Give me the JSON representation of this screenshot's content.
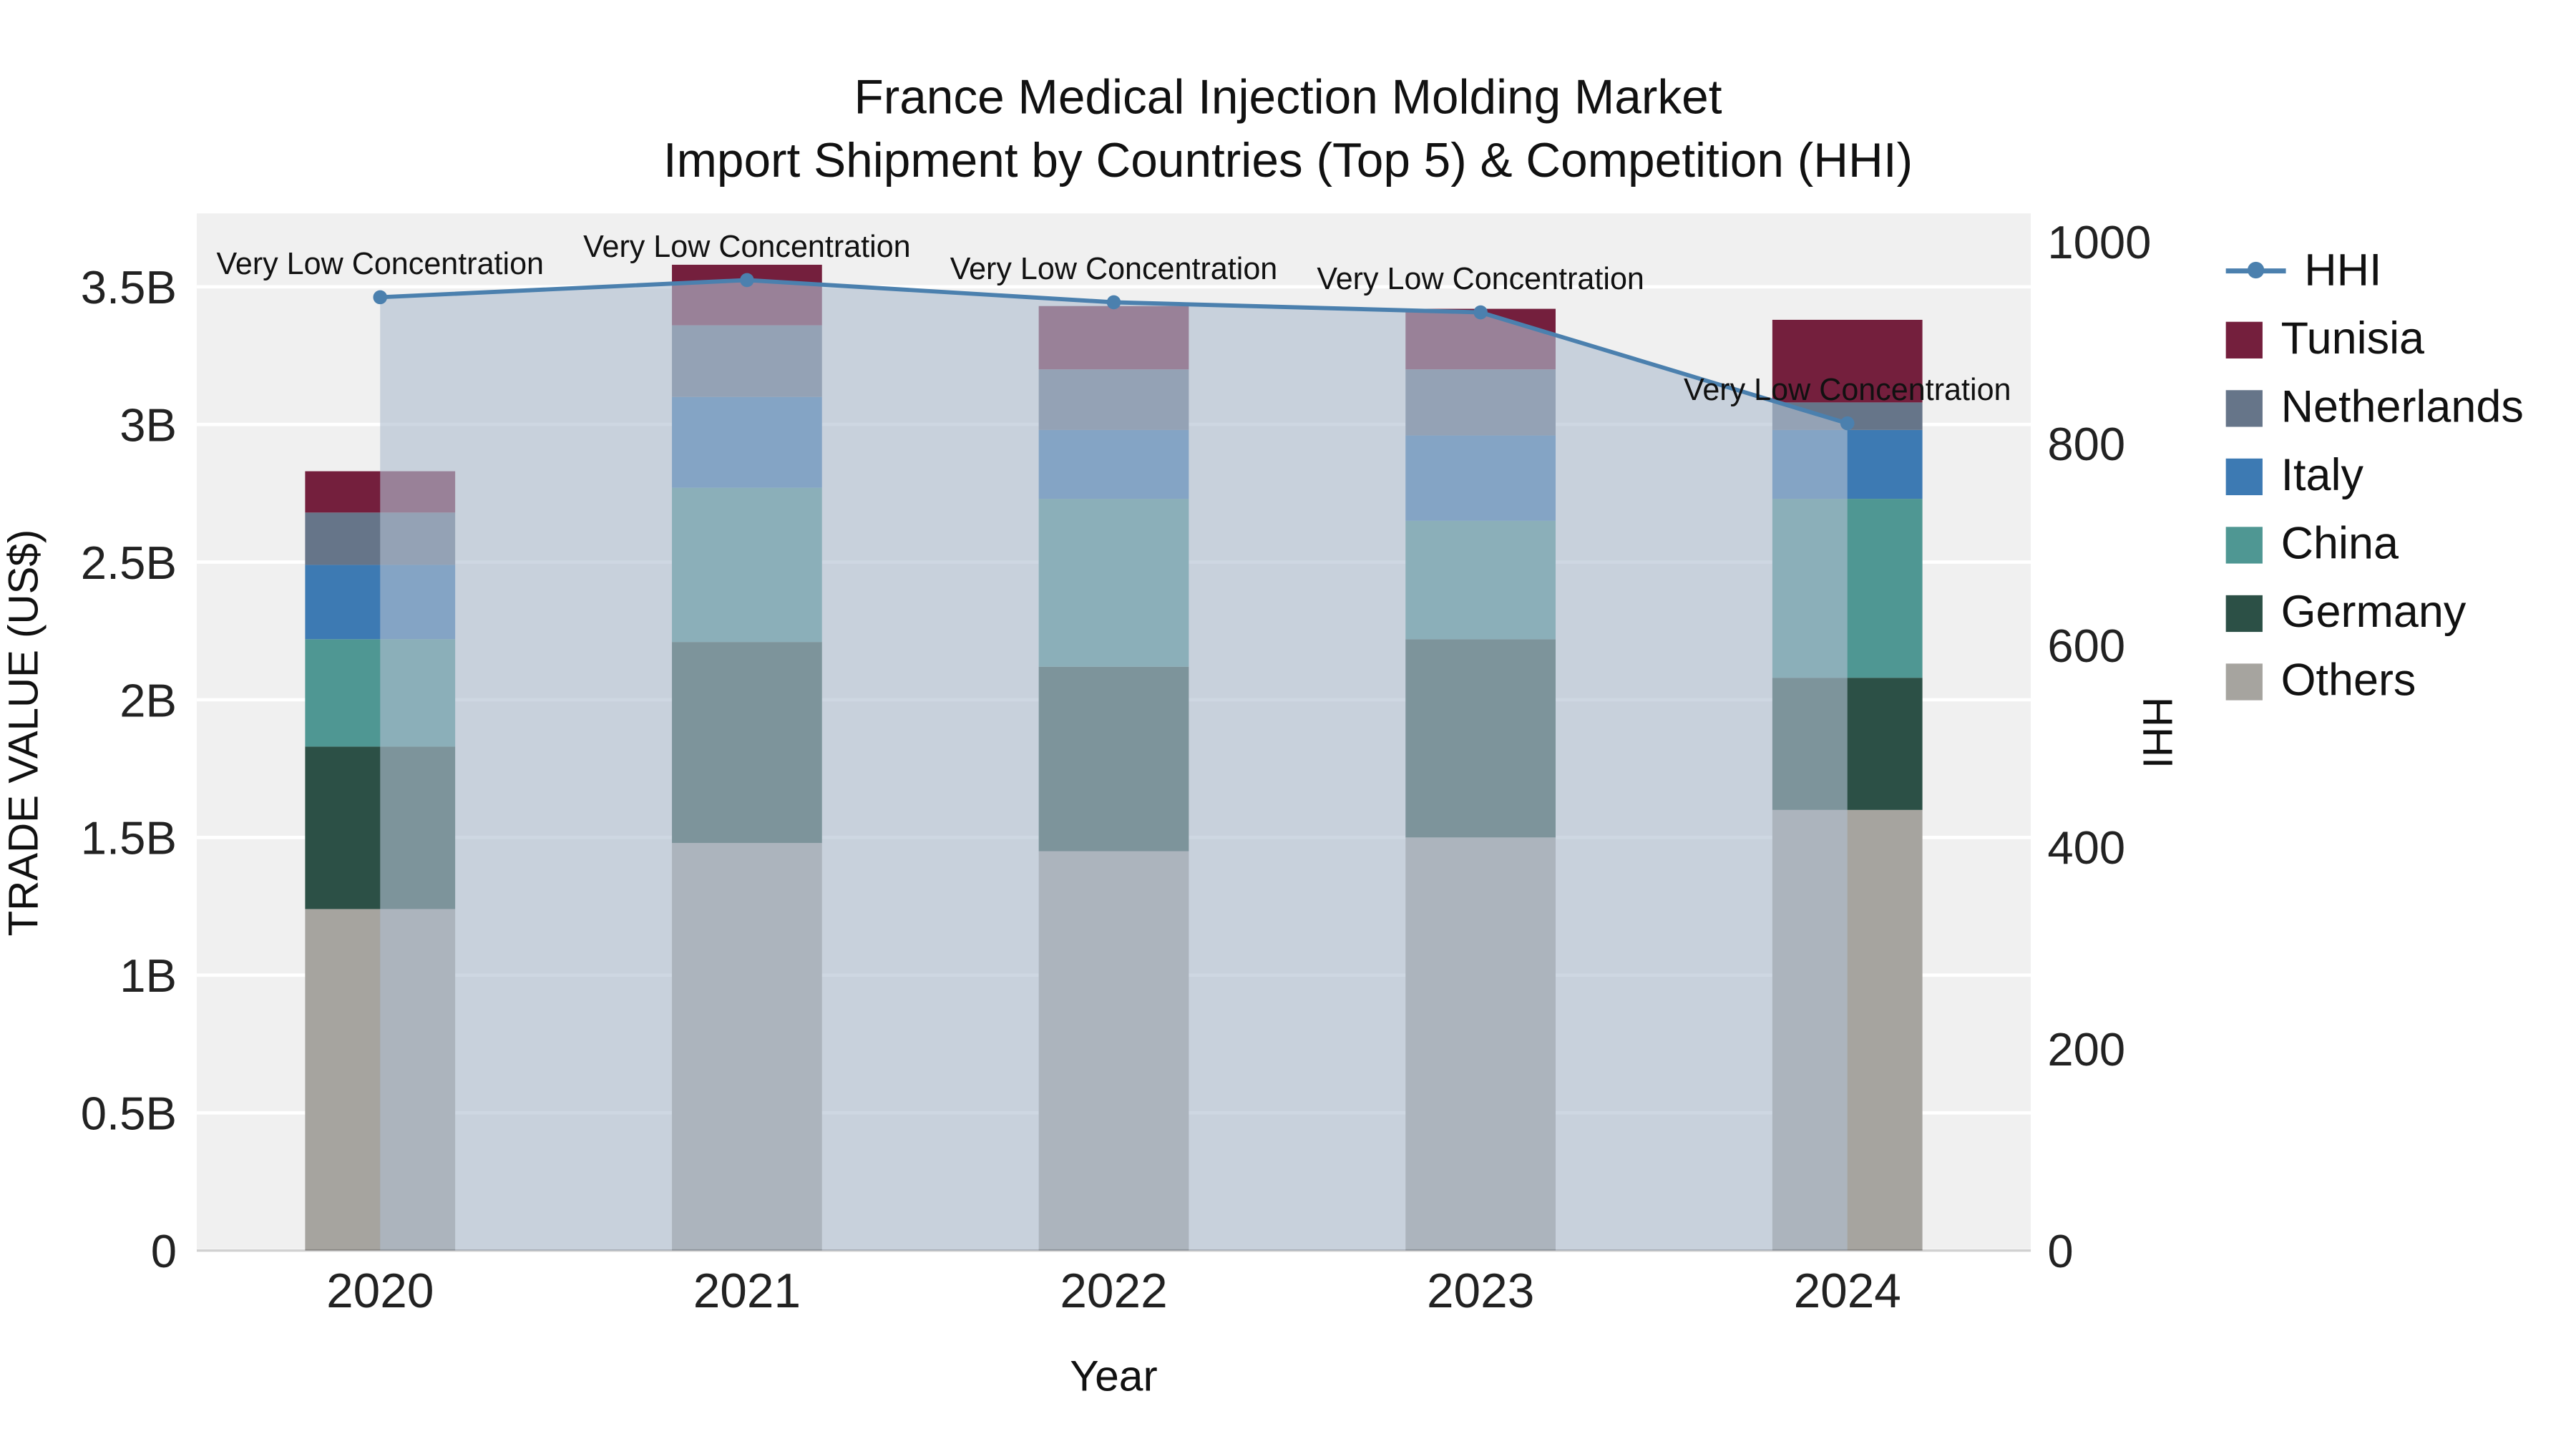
{
  "title": {
    "line1": "France Medical Injection Molding Market",
    "line2": "Import Shipment by Countries (Top 5) & Competition (HHI)"
  },
  "axes": {
    "x": {
      "label": "Year"
    },
    "y_left": {
      "label": "TRADE VALUE (US$)",
      "ticks": [
        {
          "label": "0",
          "value": 0
        },
        {
          "label": "0.5B",
          "value": 0.5
        },
        {
          "label": "1B",
          "value": 1
        },
        {
          "label": "1.5B",
          "value": 1.5
        },
        {
          "label": "2B",
          "value": 2
        },
        {
          "label": "2.5B",
          "value": 2.5
        },
        {
          "label": "3B",
          "value": 3
        },
        {
          "label": "3.5B",
          "value": 3.5
        }
      ]
    },
    "y_right": {
      "label": "HHI",
      "ticks": [
        {
          "label": "0",
          "value": 0
        },
        {
          "label": "200",
          "value": 200
        },
        {
          "label": "400",
          "value": 400
        },
        {
          "label": "600",
          "value": 600
        },
        {
          "label": "800",
          "value": 800
        },
        {
          "label": "1000",
          "value": 1000
        }
      ]
    }
  },
  "chart_data": {
    "type": "bar",
    "subtype": "stacked bars (left axis, billions US$) + HHI line with area fill (right axis)",
    "categories": [
      "2020",
      "2021",
      "2022",
      "2023",
      "2024"
    ],
    "bar_unit": "billion US$",
    "series": [
      {
        "name": "Others",
        "color": "#a6a49f",
        "values": [
          1.24,
          1.48,
          1.45,
          1.5,
          1.6
        ]
      },
      {
        "name": "Germany",
        "color": "#2c5046",
        "values": [
          0.59,
          0.73,
          0.67,
          0.72,
          0.48
        ]
      },
      {
        "name": "China",
        "color": "#4f9793",
        "values": [
          0.39,
          0.56,
          0.61,
          0.43,
          0.65
        ]
      },
      {
        "name": "Italy",
        "color": "#3d7ab3",
        "values": [
          0.27,
          0.33,
          0.25,
          0.31,
          0.25
        ]
      },
      {
        "name": "Netherlands",
        "color": "#667589",
        "values": [
          0.19,
          0.26,
          0.22,
          0.24,
          0.1
        ]
      },
      {
        "name": "Tunisia",
        "color": "#741f3d",
        "values": [
          0.15,
          0.22,
          0.23,
          0.22,
          0.3
        ]
      }
    ],
    "line_series": {
      "name": "HHI",
      "color": "#4b80ae",
      "axis": "right",
      "values": [
        945,
        962,
        940,
        930,
        820
      ],
      "area_fill": "rgba(176,191,208,0.62)"
    },
    "annotations": [
      {
        "text": "Very Low Concentration",
        "category": "2020"
      },
      {
        "text": "Very Low Concentration",
        "category": "2021"
      },
      {
        "text": "Very Low Concentration",
        "category": "2022"
      },
      {
        "text": "Very Low Concentration",
        "category": "2023"
      },
      {
        "text": "Very Low Concentration",
        "category": "2024"
      }
    ],
    "legend_order": [
      "HHI",
      "Tunisia",
      "Netherlands",
      "Italy",
      "China",
      "Germany",
      "Others"
    ],
    "plot_background": "#f0f0f0",
    "gridline_color": "#ffffff",
    "ylim_left": [
      0,
      3.77
    ],
    "ylim_right": [
      0,
      1028
    ]
  }
}
